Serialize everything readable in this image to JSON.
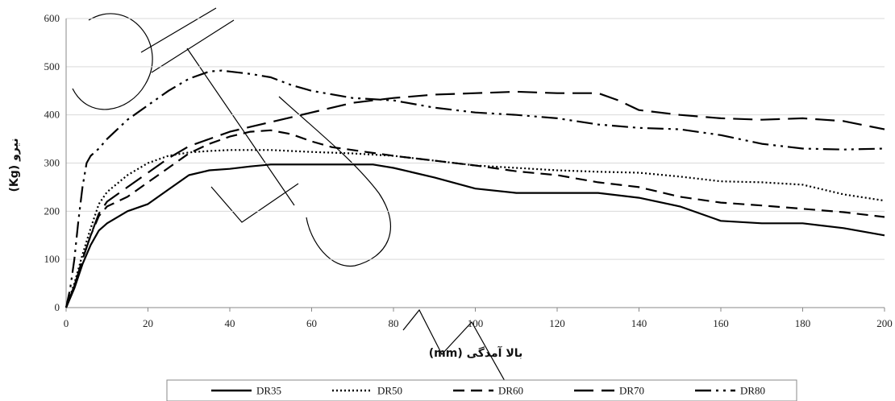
{
  "chart_data": {
    "type": "line",
    "xlabel": "بالا آمدگی (mm)",
    "ylabel": "نیرو (Kg)",
    "xlim": [
      0,
      200
    ],
    "ylim": [
      0,
      600
    ],
    "xticks": [
      "0",
      "20",
      "40",
      "60",
      "80",
      "100",
      "120",
      "140",
      "160",
      "180",
      "200"
    ],
    "yticks": [
      "0",
      "100",
      "200",
      "300",
      "400",
      "500",
      "600"
    ],
    "grid": "horizontal",
    "legend_position": "bottom",
    "series": [
      {
        "name": "DR35",
        "dash": "solid",
        "x": [
          0,
          2,
          4,
          6,
          8,
          10,
          15,
          20,
          25,
          30,
          35,
          40,
          45,
          50,
          55,
          60,
          65,
          70,
          75,
          80,
          90,
          100,
          110,
          120,
          130,
          140,
          150,
          160,
          170,
          180,
          190,
          200
        ],
        "y": [
          0,
          40,
          90,
          130,
          160,
          175,
          200,
          215,
          245,
          275,
          285,
          288,
          293,
          297,
          297,
          297,
          297,
          297,
          297,
          290,
          270,
          247,
          238,
          238,
          238,
          228,
          210,
          180,
          175,
          175,
          165,
          150
        ]
      },
      {
        "name": "DR50",
        "dash": "dotted",
        "x": [
          0,
          2,
          4,
          6,
          8,
          10,
          15,
          20,
          25,
          30,
          35,
          40,
          45,
          50,
          60,
          70,
          80,
          90,
          100,
          110,
          120,
          130,
          140,
          150,
          160,
          170,
          180,
          190,
          200
        ],
        "y": [
          0,
          50,
          110,
          165,
          215,
          240,
          275,
          300,
          315,
          322,
          325,
          327,
          327,
          327,
          323,
          320,
          315,
          305,
          295,
          290,
          285,
          282,
          280,
          272,
          262,
          260,
          255,
          235,
          222
        ]
      },
      {
        "name": "DR60",
        "dash": "dash",
        "x": [
          0,
          2,
          4,
          6,
          8,
          10,
          15,
          20,
          25,
          30,
          35,
          40,
          45,
          50,
          55,
          60,
          65,
          70,
          80,
          90,
          100,
          110,
          120,
          130,
          140,
          150,
          160,
          170,
          180,
          190,
          200
        ],
        "y": [
          0,
          45,
          100,
          150,
          190,
          210,
          230,
          260,
          290,
          320,
          340,
          355,
          365,
          368,
          360,
          345,
          333,
          327,
          315,
          305,
          295,
          283,
          275,
          260,
          250,
          230,
          218,
          212,
          205,
          198,
          188
        ]
      },
      {
        "name": "DR70",
        "dash": "longdash",
        "x": [
          0,
          2,
          4,
          6,
          8,
          10,
          15,
          20,
          25,
          30,
          35,
          40,
          45,
          50,
          60,
          70,
          80,
          90,
          100,
          110,
          120,
          130,
          135,
          140,
          150,
          160,
          170,
          180,
          190,
          200
        ],
        "y": [
          0,
          45,
          100,
          150,
          195,
          220,
          250,
          280,
          310,
          335,
          350,
          365,
          375,
          385,
          405,
          425,
          435,
          442,
          445,
          448,
          445,
          445,
          430,
          410,
          400,
          393,
          390,
          393,
          387,
          370
        ]
      },
      {
        "name": "DR80",
        "dash": "dashdotdot",
        "x": [
          0,
          1,
          2,
          3,
          4,
          5,
          6,
          8,
          10,
          15,
          20,
          25,
          30,
          35,
          38,
          40,
          45,
          50,
          55,
          60,
          70,
          80,
          90,
          100,
          110,
          120,
          130,
          140,
          150,
          160,
          170,
          180,
          190,
          200
        ],
        "y": [
          0,
          40,
          100,
          180,
          250,
          300,
          315,
          330,
          350,
          390,
          420,
          450,
          475,
          490,
          492,
          490,
          485,
          478,
          462,
          450,
          435,
          430,
          415,
          405,
          400,
          393,
          380,
          373,
          370,
          358,
          340,
          330,
          328,
          330
        ]
      }
    ]
  }
}
